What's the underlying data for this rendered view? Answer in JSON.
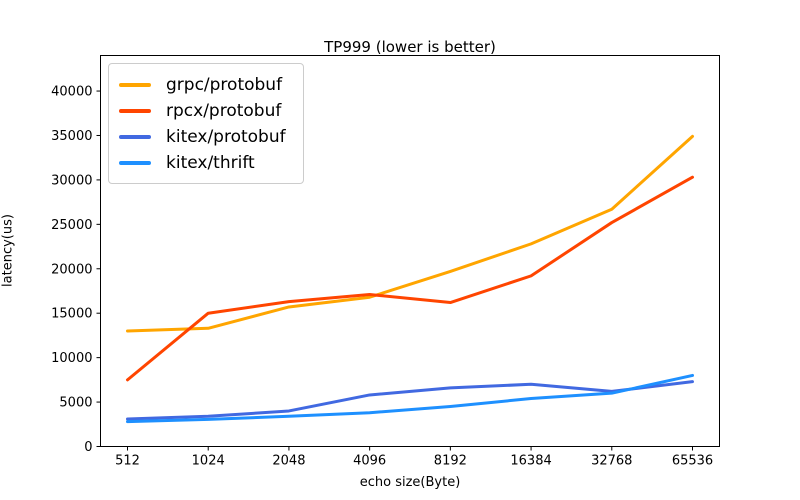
{
  "chart_data": {
    "type": "line",
    "title": "TP999 (lower is better)",
    "xlabel": "echo size(Byte)",
    "ylabel": "latency(us)",
    "categories": [
      "512",
      "1024",
      "2048",
      "4096",
      "8192",
      "16384",
      "32768",
      "65536"
    ],
    "y_ticks": [
      0,
      5000,
      10000,
      15000,
      20000,
      25000,
      30000,
      35000,
      40000
    ],
    "ylim": [
      0,
      44000
    ],
    "grid": false,
    "legend_position": "upper left",
    "axis_color": "#000000",
    "series": [
      {
        "name": "grpc/protobuf",
        "color": "#FFA500",
        "values": [
          13000,
          13300,
          15700,
          16800,
          19700,
          22800,
          26700,
          34900
        ]
      },
      {
        "name": "rpcx/protobuf",
        "color": "#FF4500",
        "values": [
          7500,
          15000,
          16300,
          17100,
          16200,
          19200,
          25200,
          30300
        ]
      },
      {
        "name": "kitex/protobuf",
        "color": "#4169E1",
        "values": [
          3100,
          3400,
          4000,
          5800,
          6600,
          7000,
          6200,
          7300
        ]
      },
      {
        "name": "kitex/thrift",
        "color": "#1E90FF",
        "values": [
          2800,
          3050,
          3400,
          3800,
          4500,
          5400,
          6000,
          8000
        ]
      }
    ]
  }
}
